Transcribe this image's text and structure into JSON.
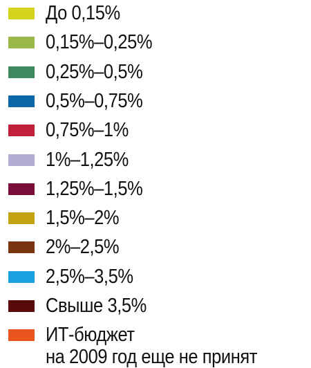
{
  "legend": {
    "items": [
      {
        "label": "До 0,15%",
        "color": "#d4d41c"
      },
      {
        "label": "0,15%–0,25%",
        "color": "#9ab94a"
      },
      {
        "label": "0,25%–0,5%",
        "color": "#3e8a5e"
      },
      {
        "label": "0,5%–0,75%",
        "color": "#0b67a8"
      },
      {
        "label": "0,75%–1%",
        "color": "#c0203a"
      },
      {
        "label": "1%–1,25%",
        "color": "#b3acd4"
      },
      {
        "label": "1,25%–1,5%",
        "color": "#7a0d3a"
      },
      {
        "label": "1,5%–2%",
        "color": "#c2a20e"
      },
      {
        "label": "2%–2,5%",
        "color": "#7a3510"
      },
      {
        "label": "2,5%–3,5%",
        "color": "#1aa1e0"
      },
      {
        "label": "Свыше 3,5%",
        "color": "#5a0a0a"
      },
      {
        "label": "ИТ-бюджет\nна 2009 год еще не принят",
        "color": "#e8561e"
      }
    ]
  }
}
